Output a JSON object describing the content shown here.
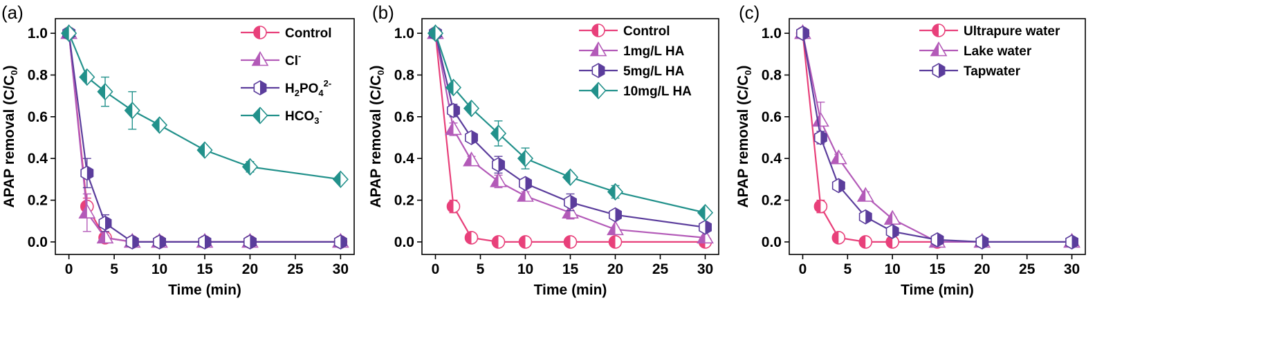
{
  "chart_data": [
    {
      "type": "line",
      "panel_label": "(a)",
      "xlabel": "Time (min)",
      "ylabel_parts": [
        "APAP removal (C/C",
        "0",
        ")"
      ],
      "xlim": [
        -1.5,
        31.5
      ],
      "ylim": [
        -0.06,
        1.07
      ],
      "xticks": [
        0,
        5,
        10,
        15,
        20,
        25,
        30
      ],
      "yticks": [
        0.0,
        0.2,
        0.4,
        0.6,
        0.8,
        1.0
      ],
      "x": [
        0,
        2,
        4,
        7,
        10,
        15,
        20,
        30
      ],
      "legend_position": "top-right",
      "series": [
        {
          "name": "Control",
          "legend_parts": [
            [
              "Control",
              ""
            ]
          ],
          "color": "#e8407a",
          "marker": "circle",
          "values": [
            1.0,
            0.17,
            0.02,
            0.0,
            0.0,
            0.0,
            0.0,
            0.0
          ],
          "errors": [
            0.0,
            0.04,
            0.01,
            0.0,
            0.0,
            0.0,
            0.0,
            0.0
          ]
        },
        {
          "name": "Cl-",
          "legend_parts": [
            [
              "Cl",
              ""
            ],
            [
              "-",
              "sup"
            ]
          ],
          "color": "#b35ab8",
          "marker": "triangle",
          "values": [
            1.0,
            0.14,
            0.02,
            0.0,
            0.0,
            0.0,
            0.0,
            0.0
          ],
          "errors": [
            0.0,
            0.09,
            0.01,
            0.0,
            0.0,
            0.0,
            0.0,
            0.0
          ]
        },
        {
          "name": "H2PO42-",
          "legend_parts": [
            [
              "H",
              ""
            ],
            [
              "2",
              "sub"
            ],
            [
              "PO",
              ""
            ],
            [
              "4",
              "sub"
            ],
            [
              "2-",
              "sup"
            ]
          ],
          "color": "#5b3d9c",
          "marker": "hexagon",
          "values": [
            1.0,
            0.33,
            0.09,
            0.0,
            0.0,
            0.0,
            0.0,
            0.0
          ],
          "errors": [
            0.0,
            0.07,
            0.04,
            0.0,
            0.0,
            0.0,
            0.0,
            0.0
          ]
        },
        {
          "name": "HCO3-",
          "legend_parts": [
            [
              "HCO",
              ""
            ],
            [
              "3",
              "sub"
            ],
            [
              "-",
              "sup"
            ]
          ],
          "color": "#22918b",
          "marker": "diamond",
          "values": [
            1.0,
            0.79,
            0.72,
            0.63,
            0.56,
            0.44,
            0.36,
            0.3
          ],
          "errors": [
            0.0,
            0.02,
            0.07,
            0.09,
            0.015,
            0.01,
            0.025,
            0.01
          ]
        }
      ]
    },
    {
      "type": "line",
      "panel_label": "(b)",
      "xlabel": "Time (min)",
      "ylabel_parts": [
        "APAP removal (C/C",
        "0",
        ")"
      ],
      "xlim": [
        -1.5,
        31.5
      ],
      "ylim": [
        -0.06,
        1.07
      ],
      "xticks": [
        0,
        5,
        10,
        15,
        20,
        25,
        30
      ],
      "yticks": [
        0.0,
        0.2,
        0.4,
        0.6,
        0.8,
        1.0
      ],
      "x": [
        0,
        2,
        4,
        7,
        10,
        15,
        20,
        30
      ],
      "legend_position": "top-right",
      "series": [
        {
          "name": "Control",
          "legend_parts": [
            [
              "Control",
              ""
            ]
          ],
          "color": "#e8407a",
          "marker": "circle",
          "values": [
            1.0,
            0.17,
            0.02,
            0.0,
            0.0,
            0.0,
            0.0,
            0.0
          ],
          "errors": [
            0.0,
            0.03,
            0.01,
            0.0,
            0.0,
            0.0,
            0.0,
            0.0
          ]
        },
        {
          "name": "1mg/L HA",
          "legend_parts": [
            [
              "1mg/L HA",
              ""
            ]
          ],
          "color": "#b35ab8",
          "marker": "triangle",
          "values": [
            1.0,
            0.54,
            0.39,
            0.29,
            0.22,
            0.14,
            0.06,
            0.02
          ],
          "errors": [
            0.0,
            0.03,
            0.02,
            0.03,
            0.02,
            0.03,
            0.01,
            0.01
          ]
        },
        {
          "name": "5mg/L HA",
          "legend_parts": [
            [
              "5mg/L HA",
              ""
            ]
          ],
          "color": "#5b3d9c",
          "marker": "hexagon",
          "values": [
            1.0,
            0.63,
            0.5,
            0.37,
            0.28,
            0.19,
            0.13,
            0.07
          ],
          "errors": [
            0.0,
            0.03,
            0.02,
            0.04,
            0.02,
            0.04,
            0.02,
            0.01
          ]
        },
        {
          "name": "10mg/L HA",
          "legend_parts": [
            [
              "10mg/L HA",
              ""
            ]
          ],
          "color": "#22918b",
          "marker": "diamond",
          "values": [
            1.0,
            0.74,
            0.64,
            0.52,
            0.4,
            0.31,
            0.24,
            0.14
          ],
          "errors": [
            0.0,
            0.02,
            0.02,
            0.06,
            0.05,
            0.02,
            0.03,
            0.01
          ]
        }
      ]
    },
    {
      "type": "line",
      "panel_label": "(c)",
      "xlabel": "Time (min)",
      "ylabel_parts": [
        "APAP removal (C/C",
        "0",
        ")"
      ],
      "xlim": [
        -1.5,
        31.5
      ],
      "ylim": [
        -0.06,
        1.07
      ],
      "xticks": [
        0,
        5,
        10,
        15,
        20,
        25,
        30
      ],
      "yticks": [
        0.0,
        0.2,
        0.4,
        0.6,
        0.8,
        1.0
      ],
      "x": [
        0,
        2,
        4,
        7,
        10,
        15,
        20,
        30
      ],
      "legend_position": "top-right",
      "series": [
        {
          "name": "Ultrapure water",
          "legend_parts": [
            [
              "Ultrapure water",
              ""
            ]
          ],
          "color": "#e8407a",
          "marker": "circle",
          "x": [
            0,
            2,
            4,
            7,
            10,
            15
          ],
          "values": [
            1.0,
            0.17,
            0.02,
            0.0,
            0.0,
            0.0
          ],
          "errors": [
            0.0,
            0.03,
            0.01,
            0.0,
            0.0,
            0.0
          ]
        },
        {
          "name": "Lake water",
          "legend_parts": [
            [
              "Lake water",
              ""
            ]
          ],
          "color": "#b35ab8",
          "marker": "triangle",
          "values": [
            1.0,
            0.58,
            0.4,
            0.22,
            0.11,
            0.0,
            0.0,
            0.0
          ],
          "errors": [
            0.0,
            0.09,
            0.02,
            0.02,
            0.01,
            0.0,
            0.0,
            0.0
          ]
        },
        {
          "name": "Tapwater",
          "legend_parts": [
            [
              "Tapwater",
              ""
            ]
          ],
          "color": "#5b3d9c",
          "marker": "hexagon",
          "values": [
            1.0,
            0.5,
            0.27,
            0.12,
            0.05,
            0.01,
            0.0,
            0.0
          ],
          "errors": [
            0.0,
            0.03,
            0.02,
            0.02,
            0.01,
            0.0,
            0.0,
            0.0
          ]
        }
      ]
    }
  ]
}
